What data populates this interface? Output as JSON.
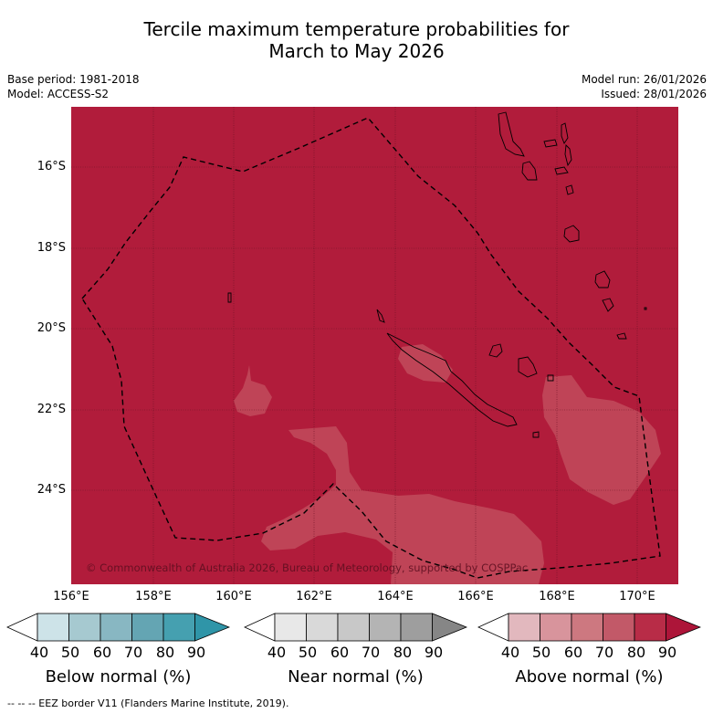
{
  "title": {
    "line1": "Tercile maximum temperature probabilities for",
    "line2": "March to May 2026"
  },
  "meta": {
    "base_period": "Base period: 1981-2018",
    "model": "Model: ACCESS-S2",
    "model_run": "Model run: 26/01/2026",
    "issued": "Issued: 28/01/2026"
  },
  "map": {
    "background_color": "#b11c3b",
    "patch_color": "#bf4457",
    "lat_labels": [
      "16°S",
      "18°S",
      "20°S",
      "22°S",
      "24°S"
    ],
    "lon_labels": [
      "156°E",
      "158°E",
      "160°E",
      "162°E",
      "164°E",
      "166°E",
      "168°E",
      "170°E"
    ],
    "copyright": "© Commonwealth of Australia 2026, Bureau of Meteorology, supported by COSPPac"
  },
  "colorbars": [
    {
      "title": "Below normal (%)",
      "colors": [
        "#ffffff",
        "#cde3e8",
        "#a6c9d0",
        "#88b7c2",
        "#64a5b3",
        "#45a0b0",
        "#2f95a8"
      ],
      "ticks": [
        "40",
        "50",
        "60",
        "70",
        "80",
        "90"
      ]
    },
    {
      "title": "Near normal (%)",
      "colors": [
        "#ffffff",
        "#e8e8e8",
        "#d9d9d9",
        "#c8c8c8",
        "#b4b4b4",
        "#9e9e9e",
        "#868686"
      ],
      "ticks": [
        "40",
        "50",
        "60",
        "70",
        "80",
        "90"
      ]
    },
    {
      "title": "Above normal (%)",
      "colors": [
        "#ffffff",
        "#e2b8be",
        "#d8949c",
        "#cd7880",
        "#c25968",
        "#b82c47",
        "#ad1539"
      ],
      "ticks": [
        "40",
        "50",
        "60",
        "70",
        "80",
        "90"
      ]
    }
  ],
  "footer": "--  --  -- EEZ border V11 (Flanders Marine Institute, 2019)."
}
